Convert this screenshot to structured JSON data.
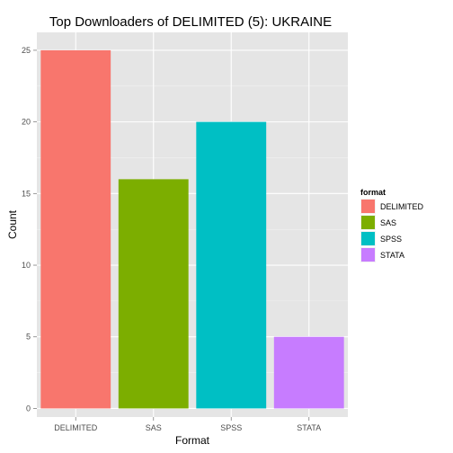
{
  "chart_data": {
    "type": "bar",
    "title": "Top Downloaders of DELIMITED (5):  UKRAINE",
    "xlabel": "Format",
    "ylabel": "Count",
    "categories": [
      "DELIMITED",
      "SAS",
      "SPSS",
      "STATA"
    ],
    "values": [
      25,
      16,
      20,
      5
    ],
    "ylim": [
      -0.6,
      26.25
    ],
    "yticks": [
      0,
      5,
      10,
      15,
      20,
      25
    ],
    "grid": true,
    "legend": {
      "title": "format",
      "position": "right",
      "entries": [
        "DELIMITED",
        "SAS",
        "SPSS",
        "STATA"
      ]
    },
    "colors": [
      "#f8766d",
      "#7cae00",
      "#00bfc4",
      "#c77cff"
    ]
  }
}
